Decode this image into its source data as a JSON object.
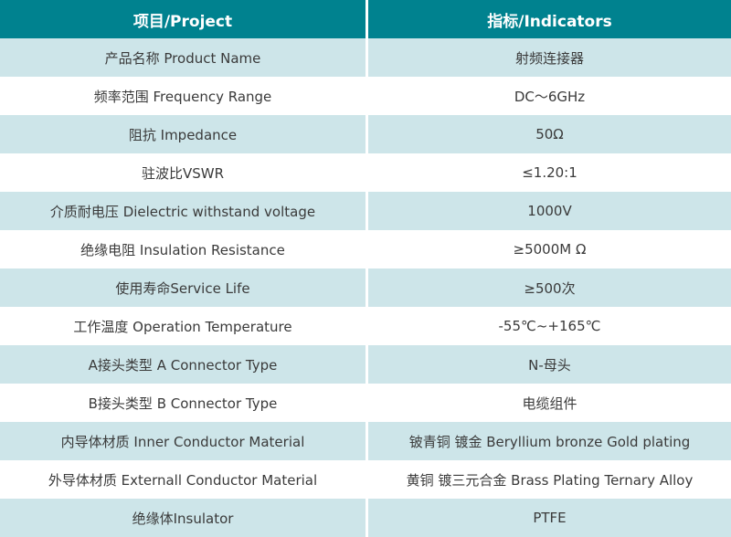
{
  "table": {
    "header": {
      "project_label": "项目/Project",
      "indicators_label": "指标/Indicators"
    },
    "rows": [
      {
        "project": "产品名称 Product Name",
        "indicator": "射频连接器"
      },
      {
        "project": "频率范围 Frequency Range",
        "indicator": "DC～6GHz"
      },
      {
        "project": "阻抗 Impedance",
        "indicator": "50Ω"
      },
      {
        "project": "驻波比VSWR",
        "indicator": "≤1.20:1"
      },
      {
        "project": "介质耐电压 Dielectric withstand voltage",
        "indicator": "1000V"
      },
      {
        "project": "绝缘电阻 Insulation Resistance",
        "indicator": "≥5000M Ω"
      },
      {
        "project": "使用寿命Service Life",
        "indicator": "≥500次"
      },
      {
        "project": "工作温度 Operation Temperature",
        "indicator": "-55℃~+165℃"
      },
      {
        "project": "A接头类型 A Connector Type",
        "indicator": "N-母头"
      },
      {
        "project": "B接头类型 B Connector Type",
        "indicator": "电缆组件"
      },
      {
        "project": "内导体材质 Inner Conductor Material",
        "indicator": "铍青铜 镀金 Beryllium bronze Gold plating"
      },
      {
        "project": "外导体材质 Externall Conductor Material",
        "indicator": "黄铜 镀三元合金 Brass Plating Ternary Alloy"
      },
      {
        "project": "绝缘体Insulator",
        "indicator": "PTFE"
      }
    ],
    "colors": {
      "header_bg": "#00828F",
      "header_text": "#FFFFFF",
      "row_bg": "#FFFFFF",
      "row_alt_bg": "#CDE5E9",
      "body_text": "#3A3A3A",
      "divider": "#FFFFFF"
    }
  }
}
